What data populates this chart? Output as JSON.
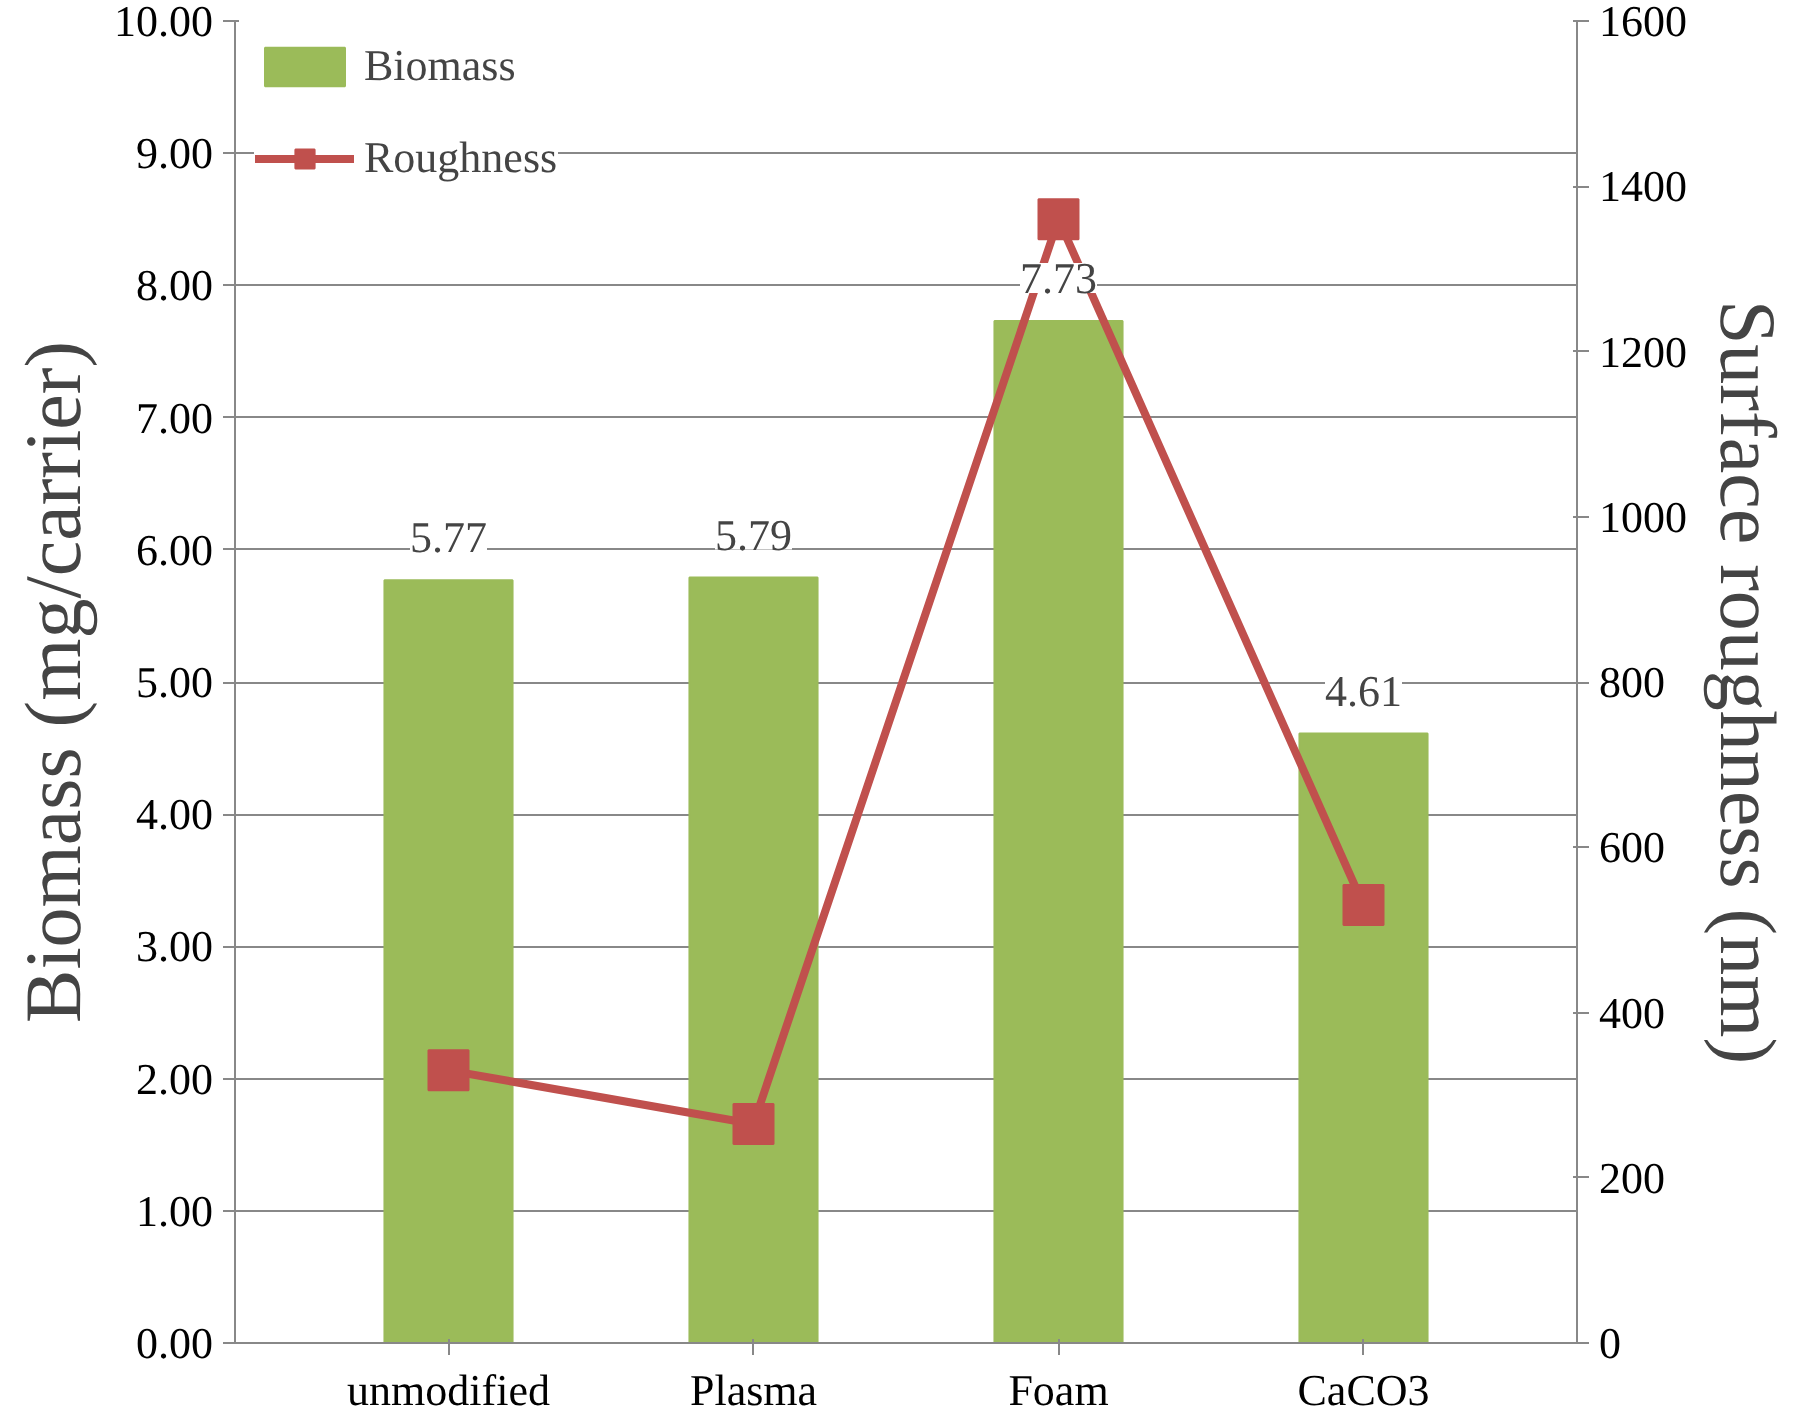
{
  "chart_data": {
    "type": "bar",
    "categories": [
      "unmodified",
      "Plasma",
      "Foam",
      "CaCO3"
    ],
    "ylabel": "Biomass (mg/carrier)",
    "y2label": "Surface roughness (nm)",
    "ylim": [
      0,
      10
    ],
    "yticks": [
      {
        "value": 0,
        "label": "0.00"
      },
      {
        "value": 1,
        "label": "1.00"
      },
      {
        "value": 2,
        "label": "2.00"
      },
      {
        "value": 3,
        "label": "3.00"
      },
      {
        "value": 4,
        "label": "4.00"
      },
      {
        "value": 5,
        "label": "5.00"
      },
      {
        "value": 6,
        "label": "6.00"
      },
      {
        "value": 7,
        "label": "7.00"
      },
      {
        "value": 8,
        "label": "8.00"
      },
      {
        "value": 9,
        "label": "9.00"
      },
      {
        "value": 10,
        "label": "10.00"
      }
    ],
    "y2lim": [
      0,
      1600
    ],
    "y2ticks": [
      0,
      200,
      400,
      600,
      800,
      1000,
      1200,
      1400,
      1600
    ],
    "grid": "y",
    "legend": "top left",
    "series": [
      {
        "name": "Biomass",
        "color": "#9bbb59",
        "values": [
          5.77,
          5.79,
          7.73,
          4.61
        ],
        "value_labels": [
          "5.77",
          "5.79",
          "7.73",
          "4.61"
        ]
      },
      {
        "name": "Roughness",
        "type": "line",
        "axis": "y2",
        "color": "#c0504d",
        "marker": "square",
        "values": [
          330,
          265,
          1360,
          530
        ]
      }
    ]
  }
}
